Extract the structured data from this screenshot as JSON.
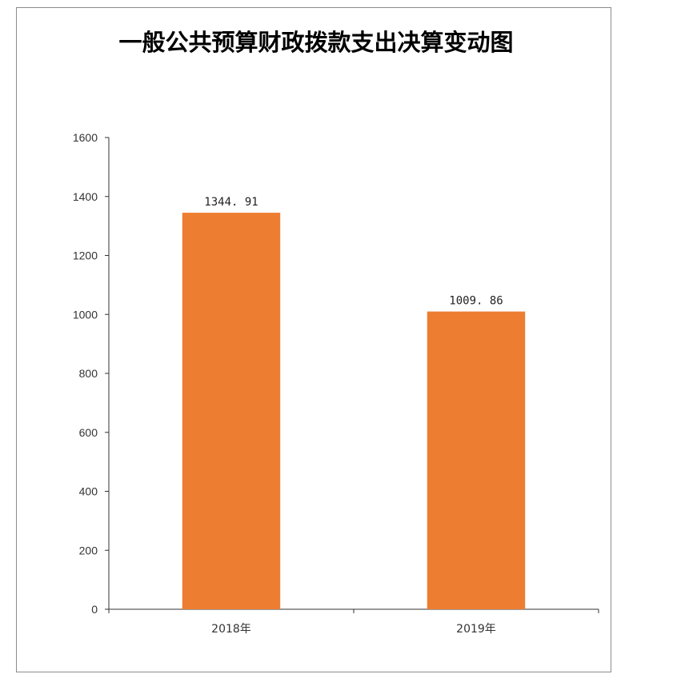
{
  "chart_data": {
    "type": "bar",
    "title": "一般公共预算财政拨款支出决算变动图",
    "categories": [
      "2018年",
      "2019年"
    ],
    "values": [
      1344.91,
      1009.86
    ],
    "value_labels": [
      "1344. 91",
      "1009. 86"
    ],
    "xlabel": "",
    "ylabel": "",
    "ylim": [
      0,
      1600
    ],
    "yticks": [
      0,
      200,
      400,
      600,
      800,
      1000,
      1200,
      1400,
      1600
    ],
    "grid": false,
    "legend": "none",
    "bar_color": "#ED7D31",
    "axis_color": "#333333"
  }
}
